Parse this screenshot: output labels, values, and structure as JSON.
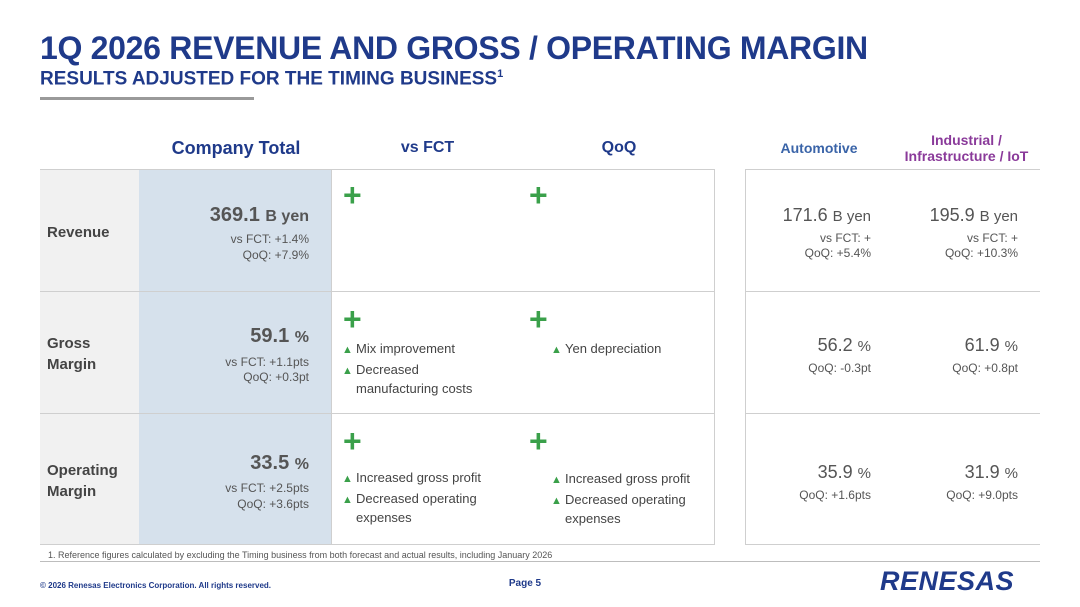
{
  "header": {
    "title": "1Q 2026 REVENUE AND GROSS / OPERATING MARGIN",
    "subtitle": "RESULTS ADJUSTED FOR THE TIMING BUSINESS",
    "subtitle_sup": "1"
  },
  "columns": {
    "company_total": "Company Total",
    "vs_fct": "vs FCT",
    "qoq": "QoQ",
    "automotive": "Automotive",
    "industrial_line1": "Industrial /",
    "industrial_line2": "Infrastructure / IoT"
  },
  "rows": {
    "revenue": {
      "label": "Revenue",
      "company_value": "369.1",
      "company_unit": "B yen",
      "company_vs_fct": "vs FCT: +1.4%",
      "company_qoq": "QoQ: +7.9%",
      "fct_sign": "+",
      "qoq_sign": "+",
      "auto_value": "171.6",
      "auto_unit": "B yen",
      "auto_vs_fct": "vs FCT: +",
      "auto_qoq": "QoQ: +5.4%",
      "ind_value": "195.9",
      "ind_unit": "B yen",
      "ind_vs_fct": "vs FCT: +",
      "ind_qoq": "QoQ: +10.3%"
    },
    "gross_margin": {
      "label_line1": "Gross",
      "label_line2": "Margin",
      "company_value": "59.1",
      "company_unit": "%",
      "company_vs_fct": "vs FCT: +1.1pts",
      "company_qoq": "QoQ: +0.3pt",
      "fct_sign": "+",
      "fct_bullets": [
        "Mix improvement",
        "Decreased",
        "manufacturing costs"
      ],
      "qoq_sign": "+",
      "qoq_bullets": [
        "Yen depreciation"
      ],
      "auto_value": "56.2",
      "auto_unit": "%",
      "auto_qoq": "QoQ: -0.3pt",
      "ind_value": "61.9",
      "ind_unit": "%",
      "ind_qoq": "QoQ: +0.8pt"
    },
    "operating_margin": {
      "label_line1": "Operating",
      "label_line2": "Margin",
      "company_value": "33.5",
      "company_unit": "%",
      "company_vs_fct": "vs FCT: +2.5pts",
      "company_qoq": "QoQ: +3.6pts",
      "fct_sign": "+",
      "fct_bullets": [
        "Increased gross profit",
        "Decreased operating",
        "expenses"
      ],
      "qoq_sign": "+",
      "qoq_bullets": [
        "Increased gross profit",
        "Decreased operating",
        "expenses"
      ],
      "auto_value": "35.9",
      "auto_unit": "%",
      "auto_qoq": "QoQ: +1.6pts",
      "ind_value": "31.9",
      "ind_unit": "%",
      "ind_qoq": "QoQ: +9.0pts"
    }
  },
  "bullet_glyph": "▲",
  "footer": {
    "footnote": "1. Reference figures calculated by excluding the Timing business from both forecast and actual results, including January 2026",
    "copyright": "© 2026 Renesas Electronics Corporation. All rights reserved.",
    "page": "Page 5",
    "logo": "RENESAS"
  },
  "colors": {
    "brand_blue": "#1f3a8a",
    "plus_green": "#3aa04a",
    "company_col_bg": "#d6e1ec",
    "industrial_purple": "#8a3a9a"
  }
}
